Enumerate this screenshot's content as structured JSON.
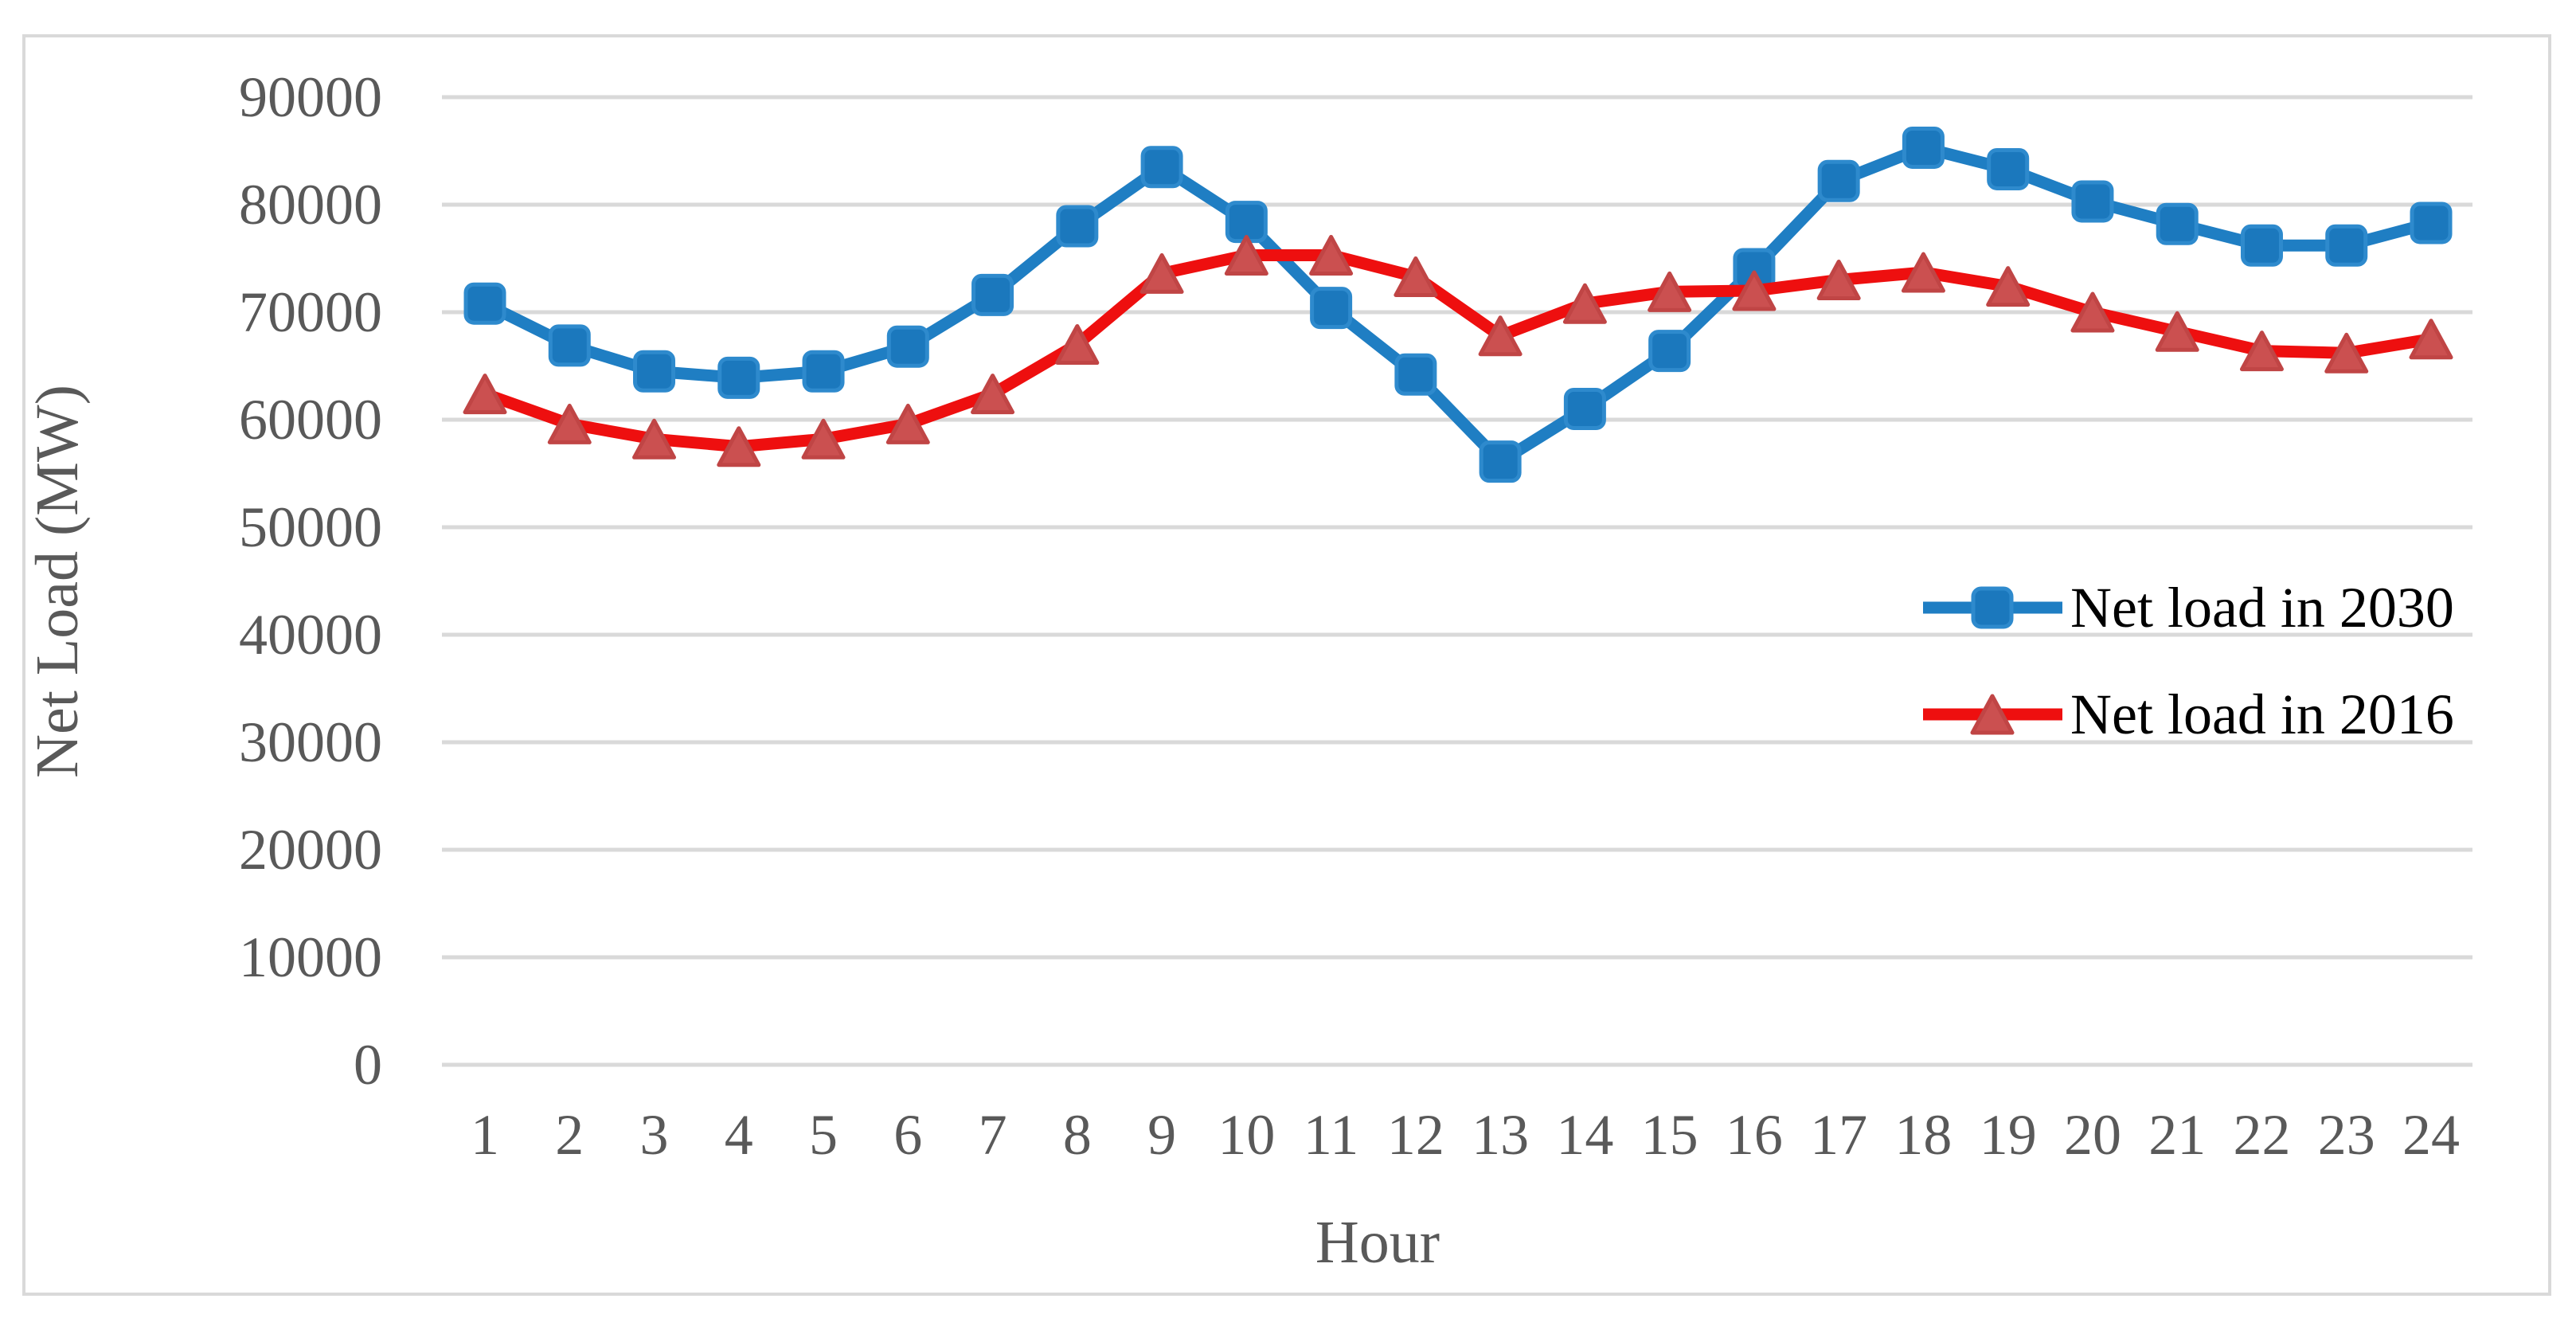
{
  "chart": {
    "y_axis": {
      "title": "Net Load (MW)",
      "ticks": [
        "0",
        "10000",
        "20000",
        "30000",
        "40000",
        "50000",
        "60000",
        "70000",
        "80000",
        "90000"
      ]
    },
    "x_axis": {
      "title": "Hour",
      "ticks": [
        "1",
        "2",
        "3",
        "4",
        "5",
        "6",
        "7",
        "8",
        "9",
        "10",
        "11",
        "12",
        "13",
        "14",
        "15",
        "16",
        "17",
        "18",
        "19",
        "20",
        "21",
        "22",
        "23",
        "24"
      ]
    },
    "legend": [
      {
        "label": "Net load in 2030",
        "marker": "square-marker-icon"
      },
      {
        "label": "Net load in 2016",
        "marker": "triangle-marker-icon"
      }
    ]
  },
  "colors": {
    "blue_line": "#1F7EC3",
    "blue_marker_fill": "#1B78BD",
    "blue_marker_stroke": "#2E8ACD",
    "red_line": "#EE0F0F",
    "red_marker_fill": "#CB5050",
    "red_marker_stroke": "#C04545",
    "gridline": "#D9D9D9",
    "frame": "#D9D9D9",
    "axis_text": "#595959",
    "legend_text": "#000000"
  },
  "chart_data": {
    "type": "line",
    "title": "",
    "xlabel": "Hour",
    "ylabel": "Net Load (MW)",
    "x": [
      1,
      2,
      3,
      4,
      5,
      6,
      7,
      8,
      9,
      10,
      11,
      12,
      13,
      14,
      15,
      16,
      17,
      18,
      19,
      20,
      21,
      22,
      23,
      24
    ],
    "ylim": [
      0,
      90000
    ],
    "ytick_step": 10000,
    "grid": true,
    "legend_position": "center-right",
    "series": [
      {
        "name": "Net load in 2030",
        "marker": "square",
        "line_color": "#1F7EC3",
        "marker_fill": "#1B78BD",
        "marker_stroke": "#2E8ACD",
        "values": [
          70800,
          66900,
          64500,
          63900,
          64500,
          66800,
          71600,
          78000,
          83500,
          78400,
          70400,
          64200,
          56100,
          61000,
          66400,
          74000,
          82200,
          85300,
          83300,
          80300,
          78200,
          76200,
          76200,
          78300
        ]
      },
      {
        "name": "Net load in 2016",
        "marker": "triangle",
        "line_color": "#EE0F0F",
        "marker_fill": "#CB5050",
        "marker_stroke": "#C04545",
        "values": [
          62400,
          59600,
          58200,
          57500,
          58200,
          59600,
          62400,
          67000,
          73600,
          75300,
          75300,
          73300,
          67800,
          70800,
          71900,
          72000,
          73000,
          73700,
          72400,
          70000,
          68200,
          66400,
          66200,
          67500
        ]
      }
    ]
  }
}
